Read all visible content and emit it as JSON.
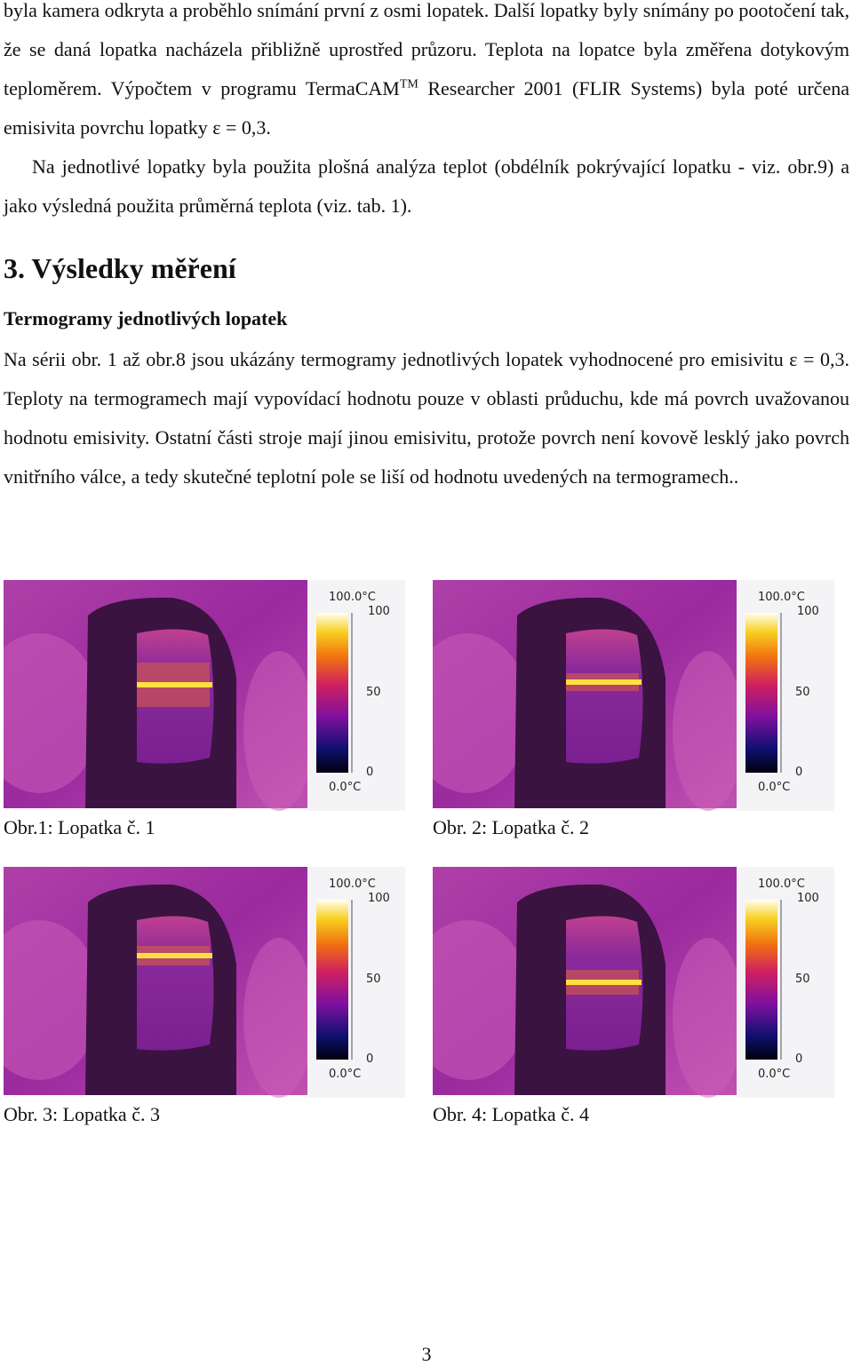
{
  "paragraphs": [
    {
      "before": "byla kamera odkryta a proběhlo snímání první z osmi lopatek. Další  lopatky byly snímány po pootočení tak, že se daná lopatka nacházela přibližně uprostřed průzoru. Teplota na lopatce byla změřena dotykovým teploměrem. Výpočtem v programu TermaCAM",
      "superscript": "TM",
      "after": " Researcher 2001 (FLIR Systems) byla poté určena emisivita povrchu lopatky ε = 0,3."
    },
    {
      "text": "Na jednotlivé lopatky byla použita plošná analýza teplot (obdélník pokrývající lopatku - viz. obr.9) a jako výsledná použita průměrná teplota (viz. tab. 1)."
    }
  ],
  "section": {
    "heading": "3. Výsledky měření",
    "subheading": "Termogramy jednotlivých lopatek",
    "text": "Na sérii obr. 1 až obr.8 jsou ukázány termogramy jednotlivých lopatek vyhodnocené pro emisivitu ε = 0,3. Teploty na termogramech mají vypovídací hodnotu pouze v oblasti průduchu, kde má povrch uvažovanou hodnotu emisivity. Ostatní části stroje mají jinou emisivitu, protože povrch není kovově lesklý jako povrch vnitřního válce, a tedy skutečné teplotní pole se liší od hodnotu uvedených na termogramech.."
  },
  "figures": [
    {
      "caption": "Obr.1: Lopatka č. 1",
      "scale": {
        "max_label": "100.0°C",
        "ticks": [
          "100",
          "50",
          "0"
        ],
        "min_label": "0.0°C"
      }
    },
    {
      "caption": "Obr. 2: Lopatka č. 2",
      "scale": {
        "max_label": "100.0°C",
        "ticks": [
          "100",
          "50",
          "0"
        ],
        "min_label": "0.0°C"
      }
    },
    {
      "caption": "Obr. 3: Lopatka č. 3",
      "scale": {
        "max_label": "100.0°C",
        "ticks": [
          "100",
          "50",
          "0"
        ],
        "min_label": "0.0°C"
      }
    },
    {
      "caption": "Obr. 4: Lopatka č. 4",
      "scale": {
        "max_label": "100.0°C",
        "ticks": [
          "100",
          "50",
          "0"
        ],
        "min_label": "0.0°C"
      }
    }
  ],
  "page_number": "3"
}
